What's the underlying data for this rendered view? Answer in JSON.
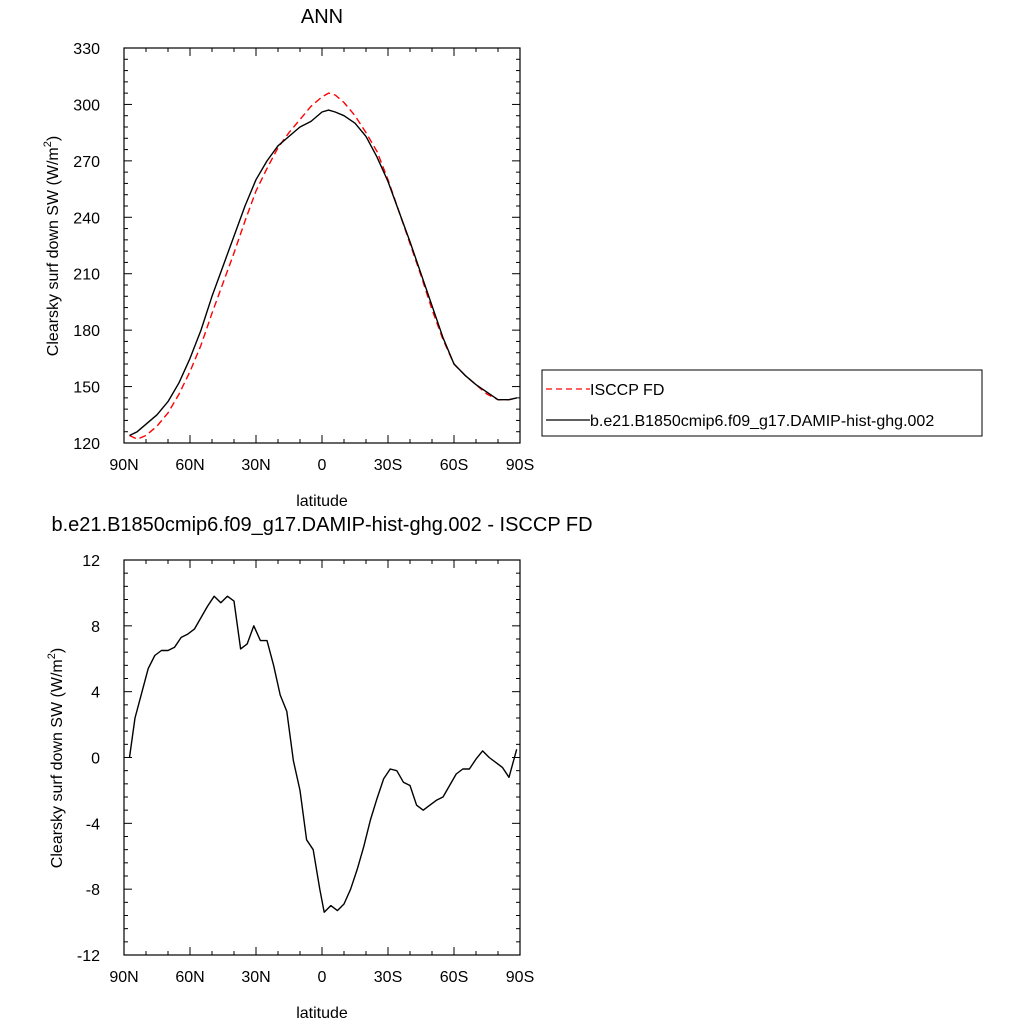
{
  "chart_data": [
    {
      "type": "line",
      "title": "ANN",
      "xlabel": "latitude",
      "ylabel": "Clearsky surf down SW (W/m",
      "ylabel_sup": "2",
      "ylabel_close": ")",
      "xlim": [
        -90,
        90
      ],
      "ylim": [
        120,
        330
      ],
      "xticks": [
        -90,
        -60,
        -30,
        0,
        30,
        60,
        90
      ],
      "xtick_labels": [
        "90N",
        "60N",
        "30N",
        "0",
        "30S",
        "60S",
        "90S"
      ],
      "yticks": [
        120,
        150,
        180,
        210,
        240,
        270,
        300,
        330
      ],
      "ytick_labels": [
        "120",
        "150",
        "180",
        "210",
        "240",
        "270",
        "300",
        "330"
      ],
      "grid": false,
      "legend_position": "right",
      "series": [
        {
          "name": "ISCCP FD",
          "color": "#ff0000",
          "dash": "dashed",
          "x": [
            -87.5,
            -84,
            -80,
            -75,
            -70,
            -65,
            -60,
            -55,
            -50,
            -45,
            -40,
            -35,
            -30,
            -25,
            -20,
            -15,
            -10,
            -5,
            0,
            3,
            6,
            10,
            15,
            20,
            25,
            30,
            35,
            40,
            45,
            50,
            55,
            60,
            65,
            70,
            75,
            80,
            85,
            88.5
          ],
          "y": [
            124,
            122,
            124,
            129,
            136,
            146,
            158,
            172,
            189,
            205,
            221,
            238,
            254,
            266,
            277,
            285,
            292,
            299,
            304,
            306,
            305,
            301,
            294,
            285,
            275,
            260,
            243,
            226,
            209,
            191,
            175,
            162,
            156,
            151,
            146,
            143,
            143,
            144
          ]
        },
        {
          "name": "b.e21.B1850cmip6.f09_g17.DAMIP-hist-ghg.002",
          "color": "#000000",
          "dash": "solid",
          "x": [
            -87.5,
            -84,
            -80,
            -75,
            -70,
            -65,
            -60,
            -55,
            -50,
            -45,
            -40,
            -35,
            -30,
            -25,
            -20,
            -15,
            -10,
            -5,
            0,
            3,
            6,
            10,
            15,
            20,
            25,
            30,
            35,
            40,
            45,
            50,
            55,
            60,
            65,
            70,
            75,
            80,
            85,
            88.5
          ],
          "y": [
            124,
            126,
            130,
            135,
            142,
            152,
            165,
            180,
            198,
            214,
            230,
            246,
            260,
            270,
            278,
            283,
            288,
            291,
            296,
            297,
            296,
            294,
            290,
            283,
            272,
            259,
            243,
            227,
            210,
            193,
            176,
            162,
            156,
            151,
            147,
            143,
            143,
            144
          ]
        }
      ],
      "legend": [
        {
          "label": "ISCCP FD",
          "color": "#ff0000",
          "dash": "dashed"
        },
        {
          "label": "b.e21.B1850cmip6.f09_g17.DAMIP-hist-ghg.002",
          "color": "#000000",
          "dash": "solid"
        }
      ]
    },
    {
      "type": "line",
      "title": "b.e21.B1850cmip6.f09_g17.DAMIP-hist-ghg.002 - ISCCP FD",
      "xlabel": "latitude",
      "ylabel": "Clearsky surf down SW (W/m",
      "ylabel_sup": "2",
      "ylabel_close": ")",
      "xlim": [
        -90,
        90
      ],
      "ylim": [
        -12,
        12
      ],
      "xticks": [
        -90,
        -60,
        -30,
        0,
        30,
        60,
        90
      ],
      "xtick_labels": [
        "90N",
        "60N",
        "30N",
        "0",
        "30S",
        "60S",
        "90S"
      ],
      "yticks": [
        -12,
        -8,
        -4,
        0,
        4,
        8,
        12
      ],
      "ytick_labels": [
        "-12",
        "-8",
        "-4",
        "0",
        "4",
        "8",
        "12"
      ],
      "grid": false,
      "series": [
        {
          "name": "",
          "color": "#000000",
          "dash": "solid",
          "x": [
            -87.5,
            -85,
            -82,
            -79,
            -76,
            -73,
            -70,
            -67,
            -64,
            -61,
            -58,
            -55,
            -52,
            -49,
            -46,
            -43,
            -40,
            -37,
            -34,
            -31,
            -28,
            -25,
            -22,
            -19,
            -16,
            -13,
            -10,
            -7,
            -4,
            -1,
            1,
            4,
            7,
            10,
            13,
            16,
            19,
            22,
            25,
            28,
            31,
            34,
            37,
            40,
            43,
            46,
            49,
            52,
            55,
            58,
            61,
            64,
            67,
            70,
            73,
            76,
            79,
            82,
            85,
            88.5
          ],
          "y": [
            0.0,
            2.4,
            3.9,
            5.4,
            6.2,
            6.5,
            6.5,
            6.7,
            7.3,
            7.5,
            7.8,
            8.5,
            9.2,
            9.8,
            9.4,
            9.8,
            9.5,
            6.6,
            6.9,
            8.0,
            7.1,
            7.1,
            5.6,
            3.8,
            2.8,
            -0.2,
            -2.0,
            -5.0,
            -5.6,
            -8.0,
            -9.4,
            -9.0,
            -9.3,
            -8.9,
            -8.0,
            -6.8,
            -5.4,
            -3.8,
            -2.5,
            -1.3,
            -0.7,
            -0.8,
            -1.5,
            -1.7,
            -2.9,
            -3.2,
            -2.9,
            -2.6,
            -2.4,
            -1.7,
            -1.0,
            -0.7,
            -0.7,
            -0.1,
            0.4,
            0.0,
            -0.3,
            -0.6,
            -1.2,
            0.5
          ]
        }
      ]
    }
  ]
}
